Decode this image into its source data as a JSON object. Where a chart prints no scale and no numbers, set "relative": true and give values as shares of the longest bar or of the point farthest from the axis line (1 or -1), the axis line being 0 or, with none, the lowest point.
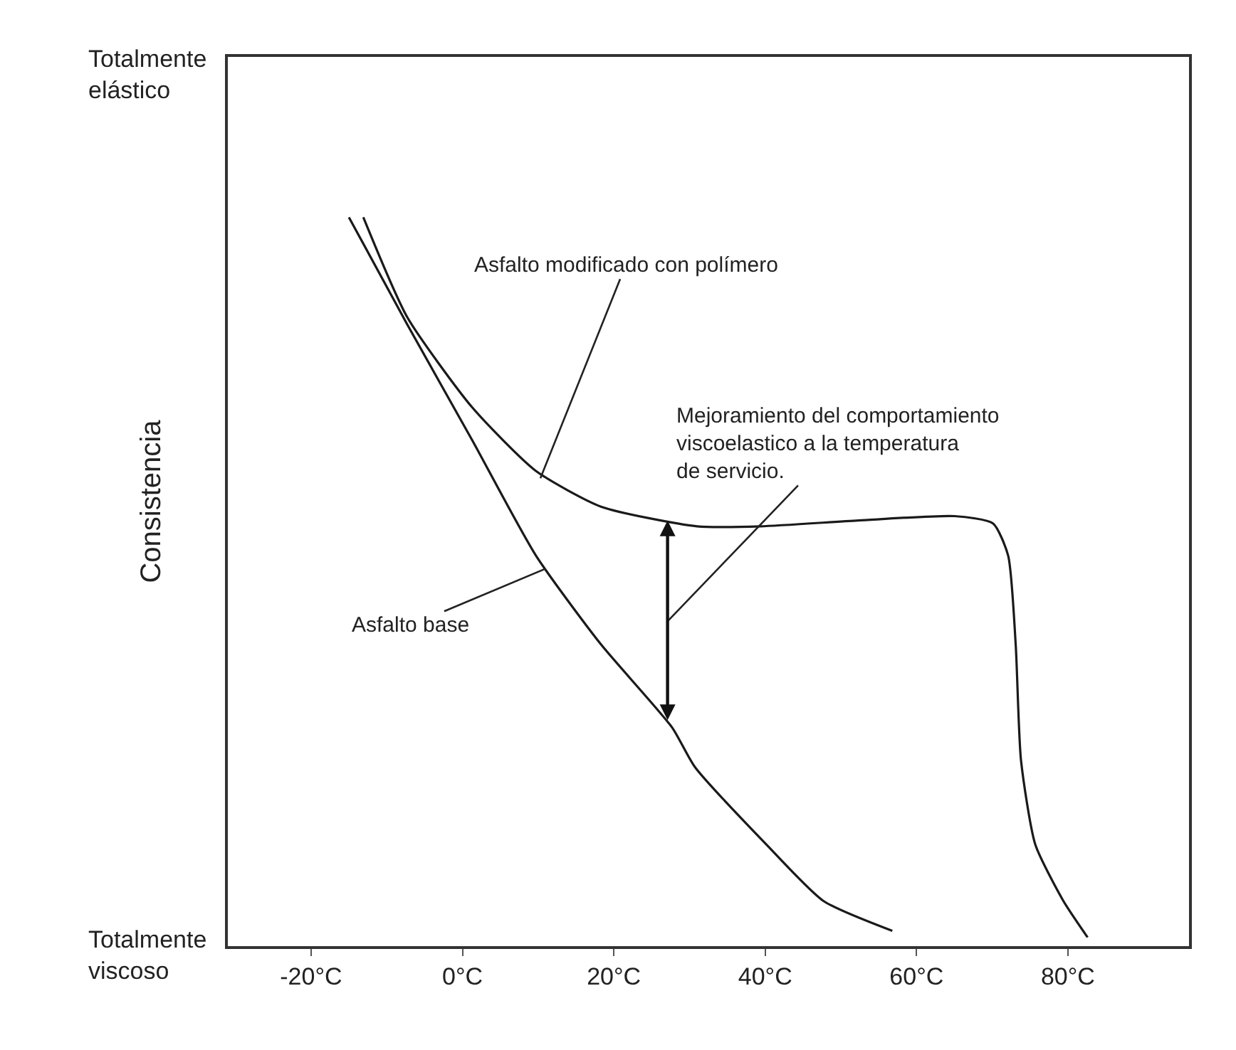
{
  "chart_data": {
    "type": "line",
    "relative": true,
    "ylabel": "Consistencia",
    "xlim": [
      -31,
      96
    ],
    "xticks": [
      {
        "value": -20,
        "label": "-20°C"
      },
      {
        "value": 0,
        "label": "0°C"
      },
      {
        "value": 20,
        "label": "20°C"
      },
      {
        "value": 40,
        "label": "40°C"
      },
      {
        "value": 60,
        "label": "60°C"
      },
      {
        "value": 80,
        "label": "80°C"
      }
    ],
    "legend": false,
    "marker": "none",
    "line_style": "solid",
    "series": [
      {
        "color": "#1a1a1a",
        "x": [
          -15.0,
          -7.3,
          1.3,
          9.7,
          18.3,
          27.7,
          30.7,
          40.2,
          47.7,
          56.8
        ],
        "values": [
          1.0,
          0.853,
          0.694,
          0.536,
          0.414,
          0.3,
          0.246,
          0.139,
          0.062,
          0.021
        ]
      },
      {
        "color": "#1a1a1a",
        "x": [
          -13.1,
          -7.3,
          1.3,
          9.7,
          18.3,
          31.0,
          39.4,
          52.3,
          65.0,
          70.1,
          72.1,
          73.1,
          73.8,
          75.7,
          79.4,
          82.6
        ],
        "values": [
          1.0,
          0.863,
          0.739,
          0.652,
          0.603,
          0.576,
          0.576,
          0.584,
          0.59,
          0.58,
          0.536,
          0.414,
          0.255,
          0.139,
          0.062,
          0.012
        ]
      }
    ],
    "annotations": [
      "Totalmente\nelástico",
      "Totalmente\nviscoso",
      {
        "text": "Asfalto modificado con polímero",
        "x": 10.3,
        "y": 0.642
      },
      {
        "text": "Mejoramiento del comportamiento\nviscoelastico a la temperatura\nde servicio.",
        "x": 27.1,
        "y": 0.584
      },
      {
        "text": "Asfalto base",
        "x": 11.0,
        "y": 0.518
      }
    ]
  }
}
